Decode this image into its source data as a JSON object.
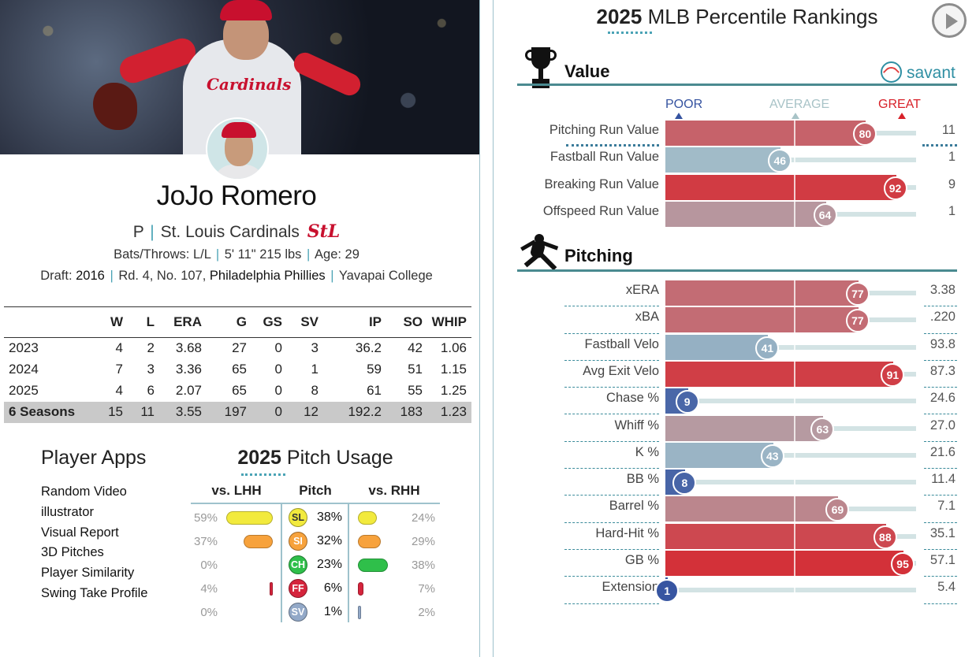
{
  "player": {
    "name": "JoJo Romero",
    "position": "P",
    "team": "St. Louis Cardinals",
    "team_logo": "StL",
    "bats_throws_label": "Bats/Throws: L/L",
    "height_weight": "5' 11\" 215 lbs",
    "age_label": "Age: 29",
    "draft_label": "Draft:",
    "draft_year": "2016",
    "draft_round": "Rd. 4, No. 107,",
    "draft_team": "Philadelphia Phillies",
    "college": "Yavapai College",
    "hero_logo_text": "Cardinals"
  },
  "stats_table": {
    "headers": [
      "",
      "W",
      "L",
      "ERA",
      "G",
      "GS",
      "SV",
      "IP",
      "SO",
      "WHIP"
    ],
    "rows": [
      [
        "2023",
        "4",
        "2",
        "3.68",
        "27",
        "0",
        "3",
        "36.2",
        "42",
        "1.06"
      ],
      [
        "2024",
        "7",
        "3",
        "3.36",
        "65",
        "0",
        "1",
        "59",
        "51",
        "1.15"
      ],
      [
        "2025",
        "4",
        "6",
        "2.07",
        "65",
        "0",
        "8",
        "61",
        "55",
        "1.25"
      ]
    ],
    "total": [
      "6 Seasons",
      "15",
      "11",
      "3.55",
      "197",
      "0",
      "12",
      "192.2",
      "183",
      "1.23"
    ]
  },
  "player_apps": {
    "title": "Player Apps",
    "items": [
      "Random Video",
      "illustrator",
      "Visual Report",
      "3D Pitches",
      "Player Similarity",
      "Swing Take Profile"
    ]
  },
  "pitch_usage": {
    "title_year": "2025",
    "title_rest": "Pitch Usage",
    "col_lhh": "vs. LHH",
    "col_pitch": "Pitch",
    "col_rhh": "vs. RHH",
    "rows": [
      {
        "code": "SL",
        "overall": "38%",
        "lhh": "59%",
        "rhh": "24%",
        "lhh_val": 59,
        "rhh_val": 24,
        "color": "#f2ea3d"
      },
      {
        "code": "SI",
        "overall": "32%",
        "lhh": "37%",
        "rhh": "29%",
        "lhh_val": 37,
        "rhh_val": 29,
        "color": "#f7a23c"
      },
      {
        "code": "CH",
        "overall": "23%",
        "lhh": "0%",
        "rhh": "38%",
        "lhh_val": 0,
        "rhh_val": 38,
        "color": "#2fbf4a"
      },
      {
        "code": "FF",
        "overall": "6%",
        "lhh": "4%",
        "rhh": "7%",
        "lhh_val": 4,
        "rhh_val": 7,
        "color": "#d5243c"
      },
      {
        "code": "SV",
        "overall": "1%",
        "lhh": "0%",
        "rhh": "2%",
        "lhh_val": 0,
        "rhh_val": 2,
        "color": "#93a9c8"
      }
    ]
  },
  "percentile": {
    "title_year": "2025",
    "title_rest": "MLB Percentile Rankings",
    "brand": "savant",
    "scale": {
      "poor": "POOR",
      "average": "AVERAGE",
      "great": "GREAT"
    },
    "colors": {
      "poor": "#3553a0",
      "average": "#aac4cb",
      "great": "#d82129"
    },
    "value_section": {
      "title": "Value",
      "metrics": [
        {
          "label": "Pitching Run Value",
          "pct": 80,
          "value": "11"
        },
        {
          "label": "Fastball Run Value",
          "pct": 46,
          "value": "1"
        },
        {
          "label": "Breaking Run Value",
          "pct": 92,
          "value": "9"
        },
        {
          "label": "Offspeed Run Value",
          "pct": 64,
          "value": "1"
        }
      ]
    },
    "pitching_section": {
      "title": "Pitching",
      "metrics": [
        {
          "label": "xERA",
          "pct": 77,
          "value": "3.38"
        },
        {
          "label": "xBA",
          "pct": 77,
          "value": ".220"
        },
        {
          "label": "Fastball Velo",
          "pct": 41,
          "value": "93.8"
        },
        {
          "label": "Avg Exit Velo",
          "pct": 91,
          "value": "87.3"
        },
        {
          "label": "Chase %",
          "pct": 9,
          "value": "24.6"
        },
        {
          "label": "Whiff %",
          "pct": 63,
          "value": "27.0"
        },
        {
          "label": "K %",
          "pct": 43,
          "value": "21.6"
        },
        {
          "label": "BB %",
          "pct": 8,
          "value": "11.4"
        },
        {
          "label": "Barrel %",
          "pct": 69,
          "value": "7.1"
        },
        {
          "label": "Hard-Hit %",
          "pct": 88,
          "value": "35.1"
        },
        {
          "label": "GB %",
          "pct": 95,
          "value": "57.1"
        },
        {
          "label": "Extension",
          "pct": 1,
          "value": "5.4"
        }
      ]
    }
  }
}
